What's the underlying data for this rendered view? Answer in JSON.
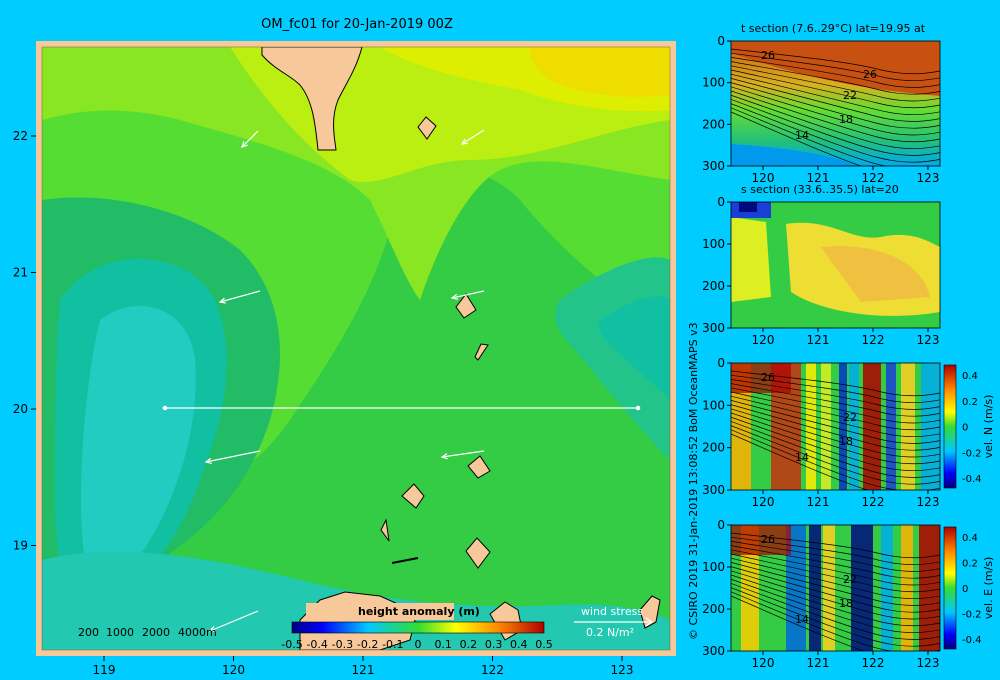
{
  "main_map": {
    "title": "OM_fc01 for 20-Jan-2019 00Z",
    "x_ticks": [
      "119",
      "120",
      "121",
      "122",
      "123"
    ],
    "y_ticks": [
      "22",
      "21",
      "20",
      "19"
    ],
    "depth_legend": [
      "200",
      "1000",
      "2000",
      "4000m"
    ],
    "colorbar": {
      "title": "height anomaly (m)",
      "ticks": [
        "-0.5",
        "-0.4",
        "-0.3",
        "-0.2",
        "-0.1",
        "0",
        "0.1",
        "0.2",
        "0.3",
        "0.4",
        "0.5"
      ]
    },
    "wind_stress": {
      "label": "wind stress",
      "scale": "0.2 N/m²"
    },
    "section_line": {
      "lat": 20
    }
  },
  "credit": "© CSIRO 2019   31-Jan-2019 13:08:52 BoM OceanMAPS v3",
  "panels": [
    {
      "id": "temperature",
      "title": "t section (7.6..29°C) lat=19.95 at",
      "x_ticks": [
        "120",
        "121",
        "122",
        "123"
      ],
      "y_ticks": [
        "0",
        "100",
        "200",
        "300"
      ],
      "contour_labels": [
        "26",
        "26",
        "22",
        "18",
        "14"
      ]
    },
    {
      "id": "salinity",
      "title": "s section (33.6..35.5) lat=20",
      "x_ticks": [
        "120",
        "121",
        "122",
        "123"
      ],
      "y_ticks": [
        "0",
        "100",
        "200",
        "300"
      ],
      "contour_labels": []
    },
    {
      "id": "vel_n",
      "title": "",
      "x_ticks": [
        "120",
        "121",
        "122",
        "123"
      ],
      "y_ticks": [
        "0",
        "100",
        "200",
        "300"
      ],
      "contour_labels": [
        "26",
        "22",
        "18",
        "14"
      ],
      "colorbar_label": "vel. N (m/s)",
      "colorbar_ticks": [
        "0.4",
        "0.2",
        "0",
        "-0.2",
        "-0.4"
      ]
    },
    {
      "id": "vel_e",
      "title": "",
      "x_ticks": [
        "120",
        "121",
        "122",
        "123"
      ],
      "y_ticks": [
        "0",
        "100",
        "200",
        "300"
      ],
      "contour_labels": [
        "26",
        "22",
        "18",
        "14"
      ],
      "colorbar_label": "vel. E (m/s)",
      "colorbar_ticks": [
        "0.4",
        "0.2",
        "0",
        "-0.2",
        "-0.4"
      ]
    }
  ],
  "colors": {
    "background": "#00ccff",
    "land": "#f7c89a",
    "frame": "#f7c89a"
  }
}
